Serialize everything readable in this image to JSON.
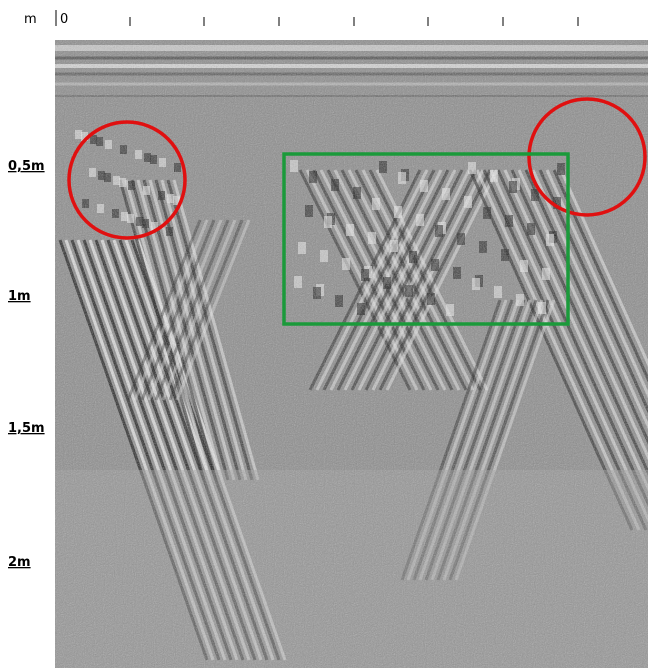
{
  "axis": {
    "unit": "m",
    "origin": "0",
    "depth_labels": [
      "0,5m",
      "1m",
      "1,5m",
      "2m"
    ]
  }
}
